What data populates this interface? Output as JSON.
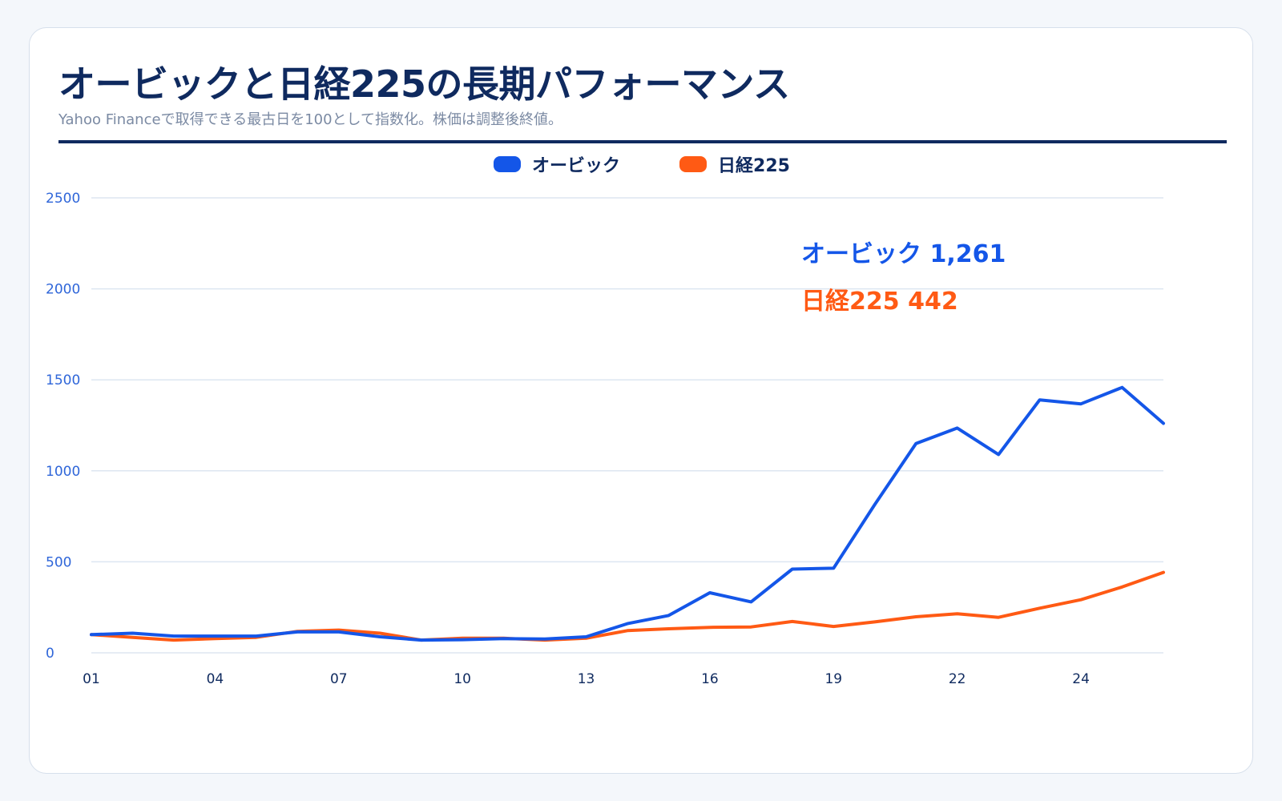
{
  "colors": {
    "okb": "#1456e8",
    "nikkei": "#ff5a14",
    "navy": "#0f2a5f",
    "grid": "#dde6f1",
    "ytick": "#2f66d9"
  },
  "chart_data": {
    "type": "line",
    "title": "オービックと日経225の長期パフォーマンス",
    "subtitle": "Yahoo Financeで取得できる最古日を100として指数化。株価は調整後終値。",
    "xlabel": "",
    "ylabel": "",
    "ylim": [
      0,
      2500
    ],
    "yticks": [
      "2500",
      "2000",
      "1500",
      "1000",
      "500",
      "0"
    ],
    "ytick_values": [
      2500,
      2000,
      1500,
      1000,
      500,
      0
    ],
    "xticks": [
      "01",
      "04",
      "07",
      "10",
      "13",
      "16",
      "19",
      "22",
      "24"
    ],
    "xtick_values": [
      1,
      4,
      7,
      10,
      13,
      16,
      19,
      22,
      25
    ],
    "x": [
      1,
      2,
      3,
      4,
      5,
      6,
      7,
      8,
      9,
      10,
      11,
      12,
      13,
      14,
      15,
      16,
      17,
      18,
      19,
      20,
      21,
      22,
      23,
      24,
      25,
      26,
      27
    ],
    "legend_position": "top-center",
    "grid": true,
    "series": [
      {
        "name": "オービック",
        "color": "#1456e8",
        "values": [
          100,
          108,
          92,
          92,
          92,
          115,
          115,
          88,
          70,
          72,
          78,
          76,
          88,
          160,
          205,
          330,
          280,
          460,
          465,
          815,
          1150,
          1235,
          1090,
          1390,
          1368,
          1458,
          1261
        ]
      },
      {
        "name": "日経225",
        "color": "#ff5a14",
        "values": [
          100,
          85,
          70,
          78,
          85,
          118,
          125,
          108,
          70,
          80,
          80,
          70,
          80,
          122,
          132,
          140,
          142,
          172,
          145,
          170,
          198,
          215,
          195,
          245,
          292,
          362,
          442
        ]
      }
    ],
    "annotations": [
      {
        "text": "オービック 1,261",
        "series": "オービック"
      },
      {
        "text": "日経225 442",
        "series": "日経225"
      }
    ]
  }
}
